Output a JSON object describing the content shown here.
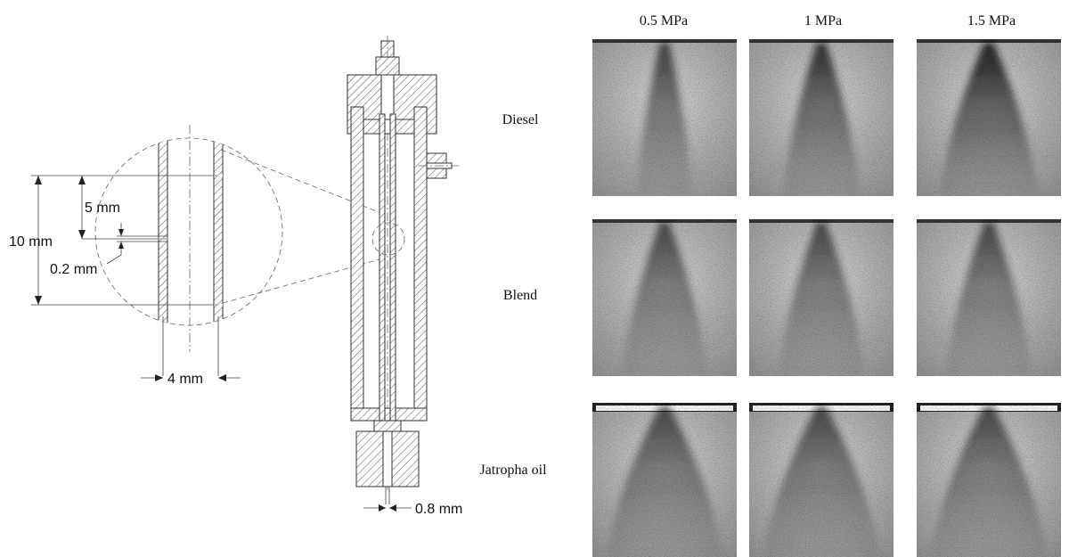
{
  "diagram": {
    "dimensions": {
      "overall_height": "10 mm",
      "hole_spacing": "5 mm",
      "hole_diameter": "0.2 mm",
      "tube_diameter": "4 mm",
      "nozzle_diameter": "0.8 mm"
    }
  },
  "spray_grid": {
    "columns": [
      "0.5 MPa",
      "1 MPa",
      "1.5 MPa"
    ],
    "rows": [
      "Diesel",
      "Blend",
      "Jatropha oil"
    ]
  }
}
